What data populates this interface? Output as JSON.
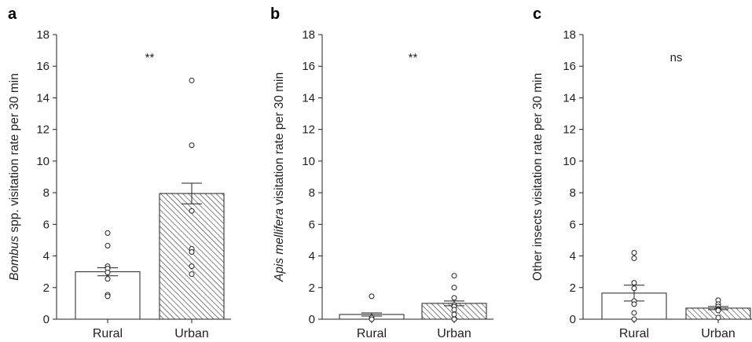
{
  "chart_data": [
    {
      "type": "bar",
      "panel": "a",
      "categories": [
        "Rural",
        "Urban"
      ],
      "values": [
        3.0,
        7.95
      ],
      "errors": [
        0.25,
        0.65
      ],
      "points": [
        [
          5.45,
          4.65,
          3.35,
          3.2,
          2.95,
          2.55,
          1.55,
          1.45
        ],
        [
          15.1,
          11.0,
          6.85,
          4.45,
          4.25,
          3.35,
          2.85
        ]
      ],
      "ylabel_italic": "Bombus",
      "ylabel_rest": " spp. visitation rate per 30 min",
      "ylim": [
        0,
        18
      ],
      "yticks": [
        "0",
        "2",
        "4",
        "6",
        "8",
        "10",
        "12",
        "14",
        "16",
        "18"
      ],
      "annotation": "**",
      "fills": [
        "open",
        "hatched"
      ]
    },
    {
      "type": "bar",
      "panel": "b",
      "categories": [
        "Rural",
        "Urban"
      ],
      "values": [
        0.3,
        1.0
      ],
      "errors": [
        0.1,
        0.15
      ],
      "points": [
        [
          1.45,
          0.1,
          0.0
        ],
        [
          2.75,
          2.0,
          1.35,
          0.9,
          0.8,
          0.6,
          0.3,
          0.0
        ]
      ],
      "ylabel_italic": "Apis mellifera",
      "ylabel_rest": " visitation rate per 30 min",
      "ylim": [
        0,
        18
      ],
      "yticks": [
        "0",
        "2",
        "4",
        "6",
        "8",
        "10",
        "12",
        "14",
        "16",
        "18"
      ],
      "annotation": "**",
      "fills": [
        "open",
        "hatched"
      ]
    },
    {
      "type": "bar",
      "panel": "c",
      "categories": [
        "Rural",
        "Urban"
      ],
      "values": [
        1.65,
        0.7
      ],
      "errors": [
        0.5,
        0.1
      ],
      "points": [
        [
          4.2,
          3.85,
          2.3,
          1.95,
          1.15,
          0.95,
          0.4,
          0.0
        ],
        [
          1.2,
          0.95,
          0.8,
          0.65,
          0.6,
          0.55,
          0.1
        ]
      ],
      "ylabel_italic": "",
      "ylabel_rest": "Other insects visitation rate per 30 min",
      "ylim": [
        0,
        18
      ],
      "yticks": [
        "0",
        "2",
        "4",
        "6",
        "8",
        "10",
        "12",
        "14",
        "16",
        "18"
      ],
      "annotation": "ns",
      "fills": [
        "open",
        "hatched"
      ]
    }
  ]
}
